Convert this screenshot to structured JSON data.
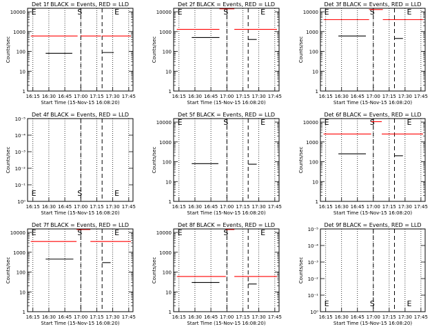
{
  "chart_data": [
    {
      "type": "line",
      "title": "Det 1f BLACK = Events, RED = LLD",
      "xlabel": "Start Time (15-Nov-15 16:08:20)",
      "ylabel": "Counts/sec",
      "y_scale": "log",
      "yticks": [
        "1",
        "10",
        "100",
        "1000",
        "10000"
      ],
      "xticks": [
        "16:15",
        "16:30",
        "16:45",
        "17:00",
        "17:15",
        "17:30",
        "17:45"
      ],
      "markers": [
        {
          "label": "E",
          "x": "16:13"
        },
        {
          "label": "S",
          "x": "17:00"
        },
        {
          "label": "E",
          "x": "17:20"
        }
      ],
      "series": [
        {
          "color": "#ff0000",
          "segments": [
            {
              "start": "16:13",
              "end": "16:57",
              "y": 600
            },
            {
              "start": "17:00",
              "end": "17:19",
              "y": 600
            },
            {
              "start": "17:20",
              "end": "17:47",
              "y": 600
            }
          ]
        },
        {
          "color": "#000000",
          "segments": [
            {
              "start": "16:27",
              "end": "16:52",
              "y": 80
            },
            {
              "start": "17:20",
              "end": "17:31",
              "y": 88
            }
          ]
        }
      ]
    },
    {
      "type": "line",
      "title": "Det 2f BLACK = Events, RED = LLD",
      "xlabel": "Start Time (15-Nov-15 16:08:20)",
      "ylabel": "Counts/sec",
      "y_scale": "log",
      "yticks": [
        "1",
        "10",
        "100",
        "1000",
        "10000"
      ],
      "xticks": [
        "16:15",
        "16:30",
        "16:45",
        "17:00",
        "17:15",
        "17:30",
        "17:45"
      ],
      "markers": [
        {
          "label": "E",
          "x": "16:13"
        },
        {
          "label": "S",
          "x": "17:00"
        },
        {
          "label": "E",
          "x": "17:20"
        }
      ],
      "series": [
        {
          "color": "#ff0000",
          "segments": [
            {
              "start": "16:13",
              "end": "16:53",
              "y": 1300
            },
            {
              "start": "16:53",
              "end": "17:07",
              "y": 14000
            },
            {
              "start": "17:07",
              "end": "17:47",
              "y": 1300
            }
          ]
        },
        {
          "color": "#000000",
          "segments": [
            {
              "start": "16:27",
              "end": "16:53",
              "y": 500
            },
            {
              "start": "17:20",
              "end": "17:28",
              "y": 400
            }
          ]
        }
      ]
    },
    {
      "type": "line",
      "title": "Det 3f BLACK = Events, RED = LLD",
      "xlabel": "Start Time (15-Nov-15 16:08:20)",
      "ylabel": "Counts/sec",
      "y_scale": "log",
      "yticks": [
        "1",
        "10",
        "100",
        "1000",
        "10000"
      ],
      "xticks": [
        "16:15",
        "16:30",
        "16:45",
        "17:00",
        "17:15",
        "17:30",
        "17:45"
      ],
      "markers": [
        {
          "label": "E",
          "x": "16:13"
        },
        {
          "label": "S",
          "x": "17:00"
        },
        {
          "label": "E",
          "x": "17:20"
        }
      ],
      "series": [
        {
          "color": "#ff0000",
          "segments": [
            {
              "start": "16:13",
              "end": "16:56",
              "y": 4000
            },
            {
              "start": "16:56",
              "end": "17:09",
              "y": 13000
            },
            {
              "start": "17:09",
              "end": "17:47",
              "y": 4000
            }
          ]
        },
        {
          "color": "#000000",
          "segments": [
            {
              "start": "16:27",
              "end": "16:53",
              "y": 600
            },
            {
              "start": "17:20",
              "end": "17:28",
              "y": 450
            }
          ]
        }
      ]
    },
    {
      "type": "line",
      "title": "Det 4f BLACK = Events, RED = LLD",
      "xlabel": "Start Time (15-Nov-15 16:08:20)",
      "ylabel": "Counts/sec",
      "y_scale": "log",
      "yticks": [
        "10⁰",
        "10⁻¹",
        "10⁻²",
        "10⁻³",
        "10⁻⁴",
        "10⁻⁵"
      ],
      "xticks": [
        "16:15",
        "16:30",
        "16:45",
        "17:00",
        "17:15",
        "17:30",
        "17:45"
      ],
      "markers": [
        {
          "label": "E",
          "x": "16:13"
        },
        {
          "label": "S",
          "x": "17:00"
        },
        {
          "label": "E",
          "x": "17:20"
        }
      ],
      "series": []
    },
    {
      "type": "line",
      "title": "Det 5f BLACK = Events, RED = LLD",
      "xlabel": "Start Time (15-Nov-15 16:08:20)",
      "ylabel": "Counts/sec",
      "y_scale": "log",
      "yticks": [
        "1",
        "10",
        "100",
        "1000",
        "10000"
      ],
      "xticks": [
        "16:15",
        "16:30",
        "16:45",
        "17:00",
        "17:15",
        "17:30",
        "17:45"
      ],
      "markers": [
        {
          "label": "E",
          "x": "16:13"
        },
        {
          "label": "S",
          "x": "17:00"
        },
        {
          "label": "E",
          "x": "17:20"
        }
      ],
      "series": [
        {
          "color": "#000000",
          "segments": [
            {
              "start": "16:27",
              "end": "16:52",
              "y": 80
            },
            {
              "start": "17:20",
              "end": "17:28",
              "y": 75
            }
          ]
        }
      ]
    },
    {
      "type": "line",
      "title": "Det 6f BLACK = Events, RED = LLD",
      "xlabel": "Start Time (15-Nov-15 16:08:20)",
      "ylabel": "Counts/sec",
      "y_scale": "log",
      "yticks": [
        "1",
        "10",
        "100",
        "1000",
        "10000"
      ],
      "xticks": [
        "16:15",
        "16:30",
        "16:45",
        "17:00",
        "17:15",
        "17:30",
        "17:45"
      ],
      "markers": [
        {
          "label": "E",
          "x": "16:13"
        },
        {
          "label": "S",
          "x": "17:00"
        },
        {
          "label": "E",
          "x": "17:20"
        }
      ],
      "series": [
        {
          "color": "#ff0000",
          "segments": [
            {
              "start": "16:13",
              "end": "16:58",
              "y": 2500
            },
            {
              "start": "16:58",
              "end": "17:08",
              "y": 10500
            },
            {
              "start": "17:08",
              "end": "17:47",
              "y": 2500
            }
          ]
        },
        {
          "color": "#000000",
          "segments": [
            {
              "start": "16:27",
              "end": "16:53",
              "y": 250
            },
            {
              "start": "17:20",
              "end": "17:28",
              "y": 200
            }
          ]
        }
      ]
    },
    {
      "type": "line",
      "title": "Det 7f BLACK = Events, RED = LLD",
      "xlabel": "Start Time (15-Nov-15 16:08:20)",
      "ylabel": "Counts/sec",
      "y_scale": "log",
      "yticks": [
        "1",
        "10",
        "100",
        "1000",
        "10000"
      ],
      "xticks": [
        "16:15",
        "16:30",
        "16:45",
        "17:00",
        "17:15",
        "17:30",
        "17:45"
      ],
      "markers": [
        {
          "label": "E",
          "x": "16:13"
        },
        {
          "label": "S",
          "x": "17:00"
        },
        {
          "label": "E",
          "x": "17:20"
        }
      ],
      "series": [
        {
          "color": "#ff0000",
          "segments": [
            {
              "start": "16:13",
              "end": "16:56",
              "y": 3500
            },
            {
              "start": "16:56",
              "end": "17:09",
              "y": 14000
            },
            {
              "start": "17:09",
              "end": "17:47",
              "y": 3500
            }
          ]
        },
        {
          "color": "#000000",
          "segments": [
            {
              "start": "16:27",
              "end": "16:53",
              "y": 450
            },
            {
              "start": "17:20",
              "end": "17:28",
              "y": 300
            }
          ]
        }
      ]
    },
    {
      "type": "line",
      "title": "Det 8f BLACK = Events, RED = LLD",
      "xlabel": "Start Time (15-Nov-15 16:08:20)",
      "ylabel": "Counts/sec",
      "y_scale": "log",
      "yticks": [
        "1",
        "10",
        "100",
        "1000",
        "10000"
      ],
      "xticks": [
        "16:15",
        "16:30",
        "16:45",
        "17:00",
        "17:15",
        "17:30",
        "17:45"
      ],
      "markers": [
        {
          "label": "E",
          "x": "16:13"
        },
        {
          "label": "S",
          "x": "17:00"
        },
        {
          "label": "E",
          "x": "17:20"
        }
      ],
      "series": [
        {
          "color": "#ff0000",
          "segments": [
            {
              "start": "16:13",
              "end": "16:59",
              "y": 60
            },
            {
              "start": "16:59",
              "end": "17:07",
              "y": 14000
            },
            {
              "start": "17:07",
              "end": "17:47",
              "y": 60
            }
          ]
        },
        {
          "color": "#000000",
          "segments": [
            {
              "start": "16:27",
              "end": "16:53",
              "y": 30
            },
            {
              "start": "17:20",
              "end": "17:28",
              "y": 25
            }
          ]
        }
      ]
    },
    {
      "type": "line",
      "title": "Det 9f BLACK = Events, RED = LLD",
      "xlabel": "Start Time (15-Nov-15 16:08:20)",
      "ylabel": "Counts/sec",
      "y_scale": "log",
      "yticks": [
        "10⁰",
        "10⁻¹",
        "10⁻²",
        "10⁻³",
        "10⁻⁴",
        "10⁻⁵"
      ],
      "xticks": [
        "16:15",
        "16:30",
        "16:45",
        "17:00",
        "17:15",
        "17:30",
        "17:45"
      ],
      "markers": [
        {
          "label": "E",
          "x": "16:13"
        },
        {
          "label": "S",
          "x": "17:00"
        },
        {
          "label": "E",
          "x": "17:20"
        }
      ],
      "series": []
    }
  ]
}
